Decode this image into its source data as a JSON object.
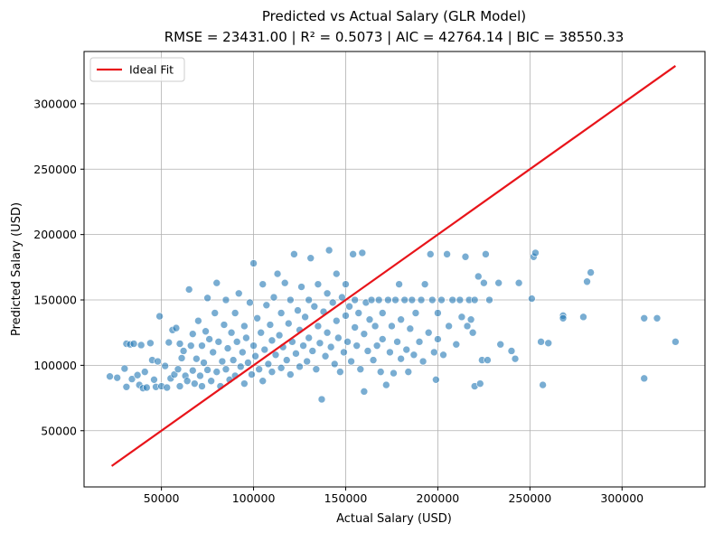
{
  "chart_data": {
    "type": "scatter",
    "title": "Predicted vs Actual Salary (GLR Model)",
    "subtitle": "RMSE = 23431.00 | R² = 0.5073 | AIC = 42764.14 | BIC = 38550.33",
    "xlabel": "Actual Salary (USD)",
    "ylabel": "Predicted Salary (USD)",
    "xlim": [
      8000,
      345000
    ],
    "ylim": [
      7000,
      340000
    ],
    "xticks": [
      50000,
      100000,
      150000,
      200000,
      250000,
      300000
    ],
    "xtick_labels": [
      "50000",
      "100000",
      "150000",
      "200000",
      "250000",
      "300000"
    ],
    "yticks": [
      50000,
      100000,
      150000,
      200000,
      250000,
      300000
    ],
    "ytick_labels": [
      "50000",
      "100000",
      "150000",
      "200000",
      "250000",
      "300000"
    ],
    "grid": true,
    "legend": {
      "position": "top-left",
      "entries": [
        {
          "label": "Ideal Fit",
          "color": "#e8141a"
        }
      ]
    },
    "ideal_fit": {
      "x": [
        23000,
        329000
      ],
      "y": [
        23000,
        329000
      ],
      "color": "#e8141a"
    },
    "point_color": "#1f77b4",
    "points": [
      [
        22000,
        91500
      ],
      [
        26000,
        90500
      ],
      [
        31000,
        116500
      ],
      [
        33000,
        116000
      ],
      [
        35000,
        116500
      ],
      [
        30000,
        97500
      ],
      [
        31000,
        83500
      ],
      [
        34000,
        89500
      ],
      [
        37000,
        92500
      ],
      [
        38000,
        85000
      ],
      [
        39000,
        115500
      ],
      [
        40000,
        82500
      ],
      [
        41000,
        95000
      ],
      [
        42000,
        83000
      ],
      [
        44000,
        117000
      ],
      [
        45000,
        104000
      ],
      [
        46000,
        89000
      ],
      [
        47000,
        83500
      ],
      [
        48000,
        103000
      ],
      [
        49000,
        137500
      ],
      [
        50000,
        84000
      ],
      [
        52000,
        99500
      ],
      [
        53000,
        83000
      ],
      [
        54000,
        117500
      ],
      [
        55000,
        90000
      ],
      [
        56000,
        127000
      ],
      [
        57000,
        93000
      ],
      [
        58000,
        128500
      ],
      [
        59000,
        97000
      ],
      [
        60000,
        116500
      ],
      [
        60000,
        84000
      ],
      [
        61000,
        105500
      ],
      [
        62000,
        111000
      ],
      [
        63000,
        92000
      ],
      [
        64000,
        88000
      ],
      [
        65000,
        158000
      ],
      [
        66000,
        115000
      ],
      [
        67000,
        96000
      ],
      [
        67000,
        124000
      ],
      [
        68000,
        86000
      ],
      [
        69000,
        105000
      ],
      [
        70000,
        134000
      ],
      [
        71000,
        92000
      ],
      [
        72000,
        115000
      ],
      [
        72000,
        84000
      ],
      [
        73000,
        102000
      ],
      [
        74000,
        126000
      ],
      [
        75000,
        96500
      ],
      [
        75000,
        151500
      ],
      [
        76000,
        120000
      ],
      [
        77000,
        88000
      ],
      [
        78000,
        110000
      ],
      [
        79000,
        140000
      ],
      [
        80000,
        95000
      ],
      [
        80000,
        163000
      ],
      [
        81000,
        118000
      ],
      [
        82000,
        84000
      ],
      [
        83000,
        103000
      ],
      [
        84000,
        131000
      ],
      [
        85000,
        97000
      ],
      [
        85000,
        150000
      ],
      [
        86000,
        113000
      ],
      [
        87000,
        89000
      ],
      [
        88000,
        125000
      ],
      [
        89000,
        104000
      ],
      [
        90000,
        140000
      ],
      [
        90000,
        92000
      ],
      [
        91000,
        118000
      ],
      [
        92000,
        155000
      ],
      [
        93000,
        99000
      ],
      [
        94000,
        110000
      ],
      [
        95000,
        130000
      ],
      [
        95000,
        86000
      ],
      [
        96000,
        121000
      ],
      [
        97000,
        102000
      ],
      [
        98000,
        148000
      ],
      [
        99000,
        93000
      ],
      [
        100000,
        115000
      ],
      [
        100000,
        178000
      ],
      [
        101000,
        107000
      ],
      [
        102000,
        136000
      ],
      [
        103000,
        97000
      ],
      [
        104000,
        125000
      ],
      [
        105000,
        162000
      ],
      [
        105000,
        88000
      ],
      [
        106000,
        112000
      ],
      [
        107000,
        146000
      ],
      [
        108000,
        101000
      ],
      [
        109000,
        131000
      ],
      [
        110000,
        119000
      ],
      [
        110000,
        95000
      ],
      [
        111000,
        152000
      ],
      [
        112000,
        108000
      ],
      [
        113000,
        170000
      ],
      [
        114000,
        123000
      ],
      [
        115000,
        98000
      ],
      [
        115000,
        140000
      ],
      [
        116000,
        114000
      ],
      [
        117000,
        163000
      ],
      [
        118000,
        104000
      ],
      [
        119000,
        132000
      ],
      [
        120000,
        150000
      ],
      [
        120000,
        93000
      ],
      [
        121000,
        118000
      ],
      [
        122000,
        185000
      ],
      [
        123000,
        109000
      ],
      [
        124000,
        142000
      ],
      [
        125000,
        127000
      ],
      [
        125000,
        99000
      ],
      [
        126000,
        160000
      ],
      [
        127000,
        115000
      ],
      [
        128000,
        137000
      ],
      [
        129000,
        103000
      ],
      [
        130000,
        150000
      ],
      [
        130000,
        121000
      ],
      [
        131000,
        182000
      ],
      [
        132000,
        111000
      ],
      [
        133000,
        145000
      ],
      [
        134000,
        97000
      ],
      [
        135000,
        130000
      ],
      [
        135000,
        162000
      ],
      [
        136000,
        117000
      ],
      [
        137000,
        74000
      ],
      [
        138000,
        141000
      ],
      [
        139000,
        107000
      ],
      [
        140000,
        155000
      ],
      [
        140000,
        125000
      ],
      [
        141000,
        188000
      ],
      [
        142000,
        114000
      ],
      [
        143000,
        148000
      ],
      [
        144000,
        101000
      ],
      [
        145000,
        134000
      ],
      [
        145000,
        170000
      ],
      [
        146000,
        121000
      ],
      [
        147000,
        95000
      ],
      [
        148000,
        152000
      ],
      [
        149000,
        110000
      ],
      [
        150000,
        138000
      ],
      [
        150000,
        162000
      ],
      [
        151000,
        118000
      ],
      [
        152000,
        145000
      ],
      [
        153000,
        103000
      ],
      [
        154000,
        185000
      ],
      [
        155000,
        129000
      ],
      [
        155000,
        150000
      ],
      [
        156000,
        115000
      ],
      [
        157000,
        140000
      ],
      [
        158000,
        97000
      ],
      [
        159000,
        186000
      ],
      [
        160000,
        124000
      ],
      [
        160000,
        80000
      ],
      [
        161000,
        148000
      ],
      [
        162000,
        111000
      ],
      [
        163000,
        135000
      ],
      [
        164000,
        150000
      ],
      [
        165000,
        104000
      ],
      [
        166000,
        130000
      ],
      [
        167000,
        115000
      ],
      [
        168000,
        150000
      ],
      [
        169000,
        95000
      ],
      [
        170000,
        140000
      ],
      [
        170000,
        120000
      ],
      [
        172000,
        85000
      ],
      [
        173000,
        150000
      ],
      [
        174000,
        110000
      ],
      [
        175000,
        130000
      ],
      [
        176000,
        94000
      ],
      [
        177000,
        150000
      ],
      [
        178000,
        118000
      ],
      [
        179000,
        162000
      ],
      [
        180000,
        105000
      ],
      [
        180000,
        135000
      ],
      [
        182000,
        150000
      ],
      [
        183000,
        112000
      ],
      [
        184000,
        95000
      ],
      [
        185000,
        128000
      ],
      [
        186000,
        150000
      ],
      [
        187000,
        108000
      ],
      [
        188000,
        140000
      ],
      [
        190000,
        118000
      ],
      [
        191000,
        150000
      ],
      [
        192000,
        103000
      ],
      [
        193000,
        162000
      ],
      [
        195000,
        125000
      ],
      [
        196000,
        185000
      ],
      [
        197000,
        150000
      ],
      [
        198000,
        110000
      ],
      [
        199000,
        89000
      ],
      [
        200000,
        140000
      ],
      [
        200000,
        120000
      ],
      [
        202000,
        150000
      ],
      [
        203000,
        108000
      ],
      [
        205000,
        185000
      ],
      [
        206000,
        130000
      ],
      [
        208000,
        150000
      ],
      [
        210000,
        116000
      ],
      [
        212000,
        150000
      ],
      [
        213000,
        137000
      ],
      [
        215000,
        183000
      ],
      [
        216000,
        130000
      ],
      [
        217000,
        150000
      ],
      [
        218000,
        135000
      ],
      [
        219000,
        125000
      ],
      [
        220000,
        84000
      ],
      [
        220000,
        150000
      ],
      [
        222000,
        168000
      ],
      [
        223000,
        86000
      ],
      [
        224000,
        104000
      ],
      [
        225000,
        163000
      ],
      [
        226000,
        185000
      ],
      [
        227000,
        104000
      ],
      [
        228000,
        150000
      ],
      [
        233000,
        163000
      ],
      [
        234000,
        116000
      ],
      [
        240000,
        111000
      ],
      [
        242000,
        105000
      ],
      [
        244000,
        163000
      ],
      [
        251000,
        151000
      ],
      [
        252000,
        183000
      ],
      [
        253000,
        186000
      ],
      [
        256000,
        118000
      ],
      [
        257000,
        85000
      ],
      [
        260000,
        117000
      ],
      [
        268000,
        138000
      ],
      [
        268000,
        136000
      ],
      [
        279000,
        137000
      ],
      [
        281000,
        164000
      ],
      [
        283000,
        171000
      ],
      [
        312000,
        90000
      ],
      [
        312000,
        136000
      ],
      [
        319000,
        136000
      ],
      [
        329000,
        118000
      ]
    ]
  }
}
